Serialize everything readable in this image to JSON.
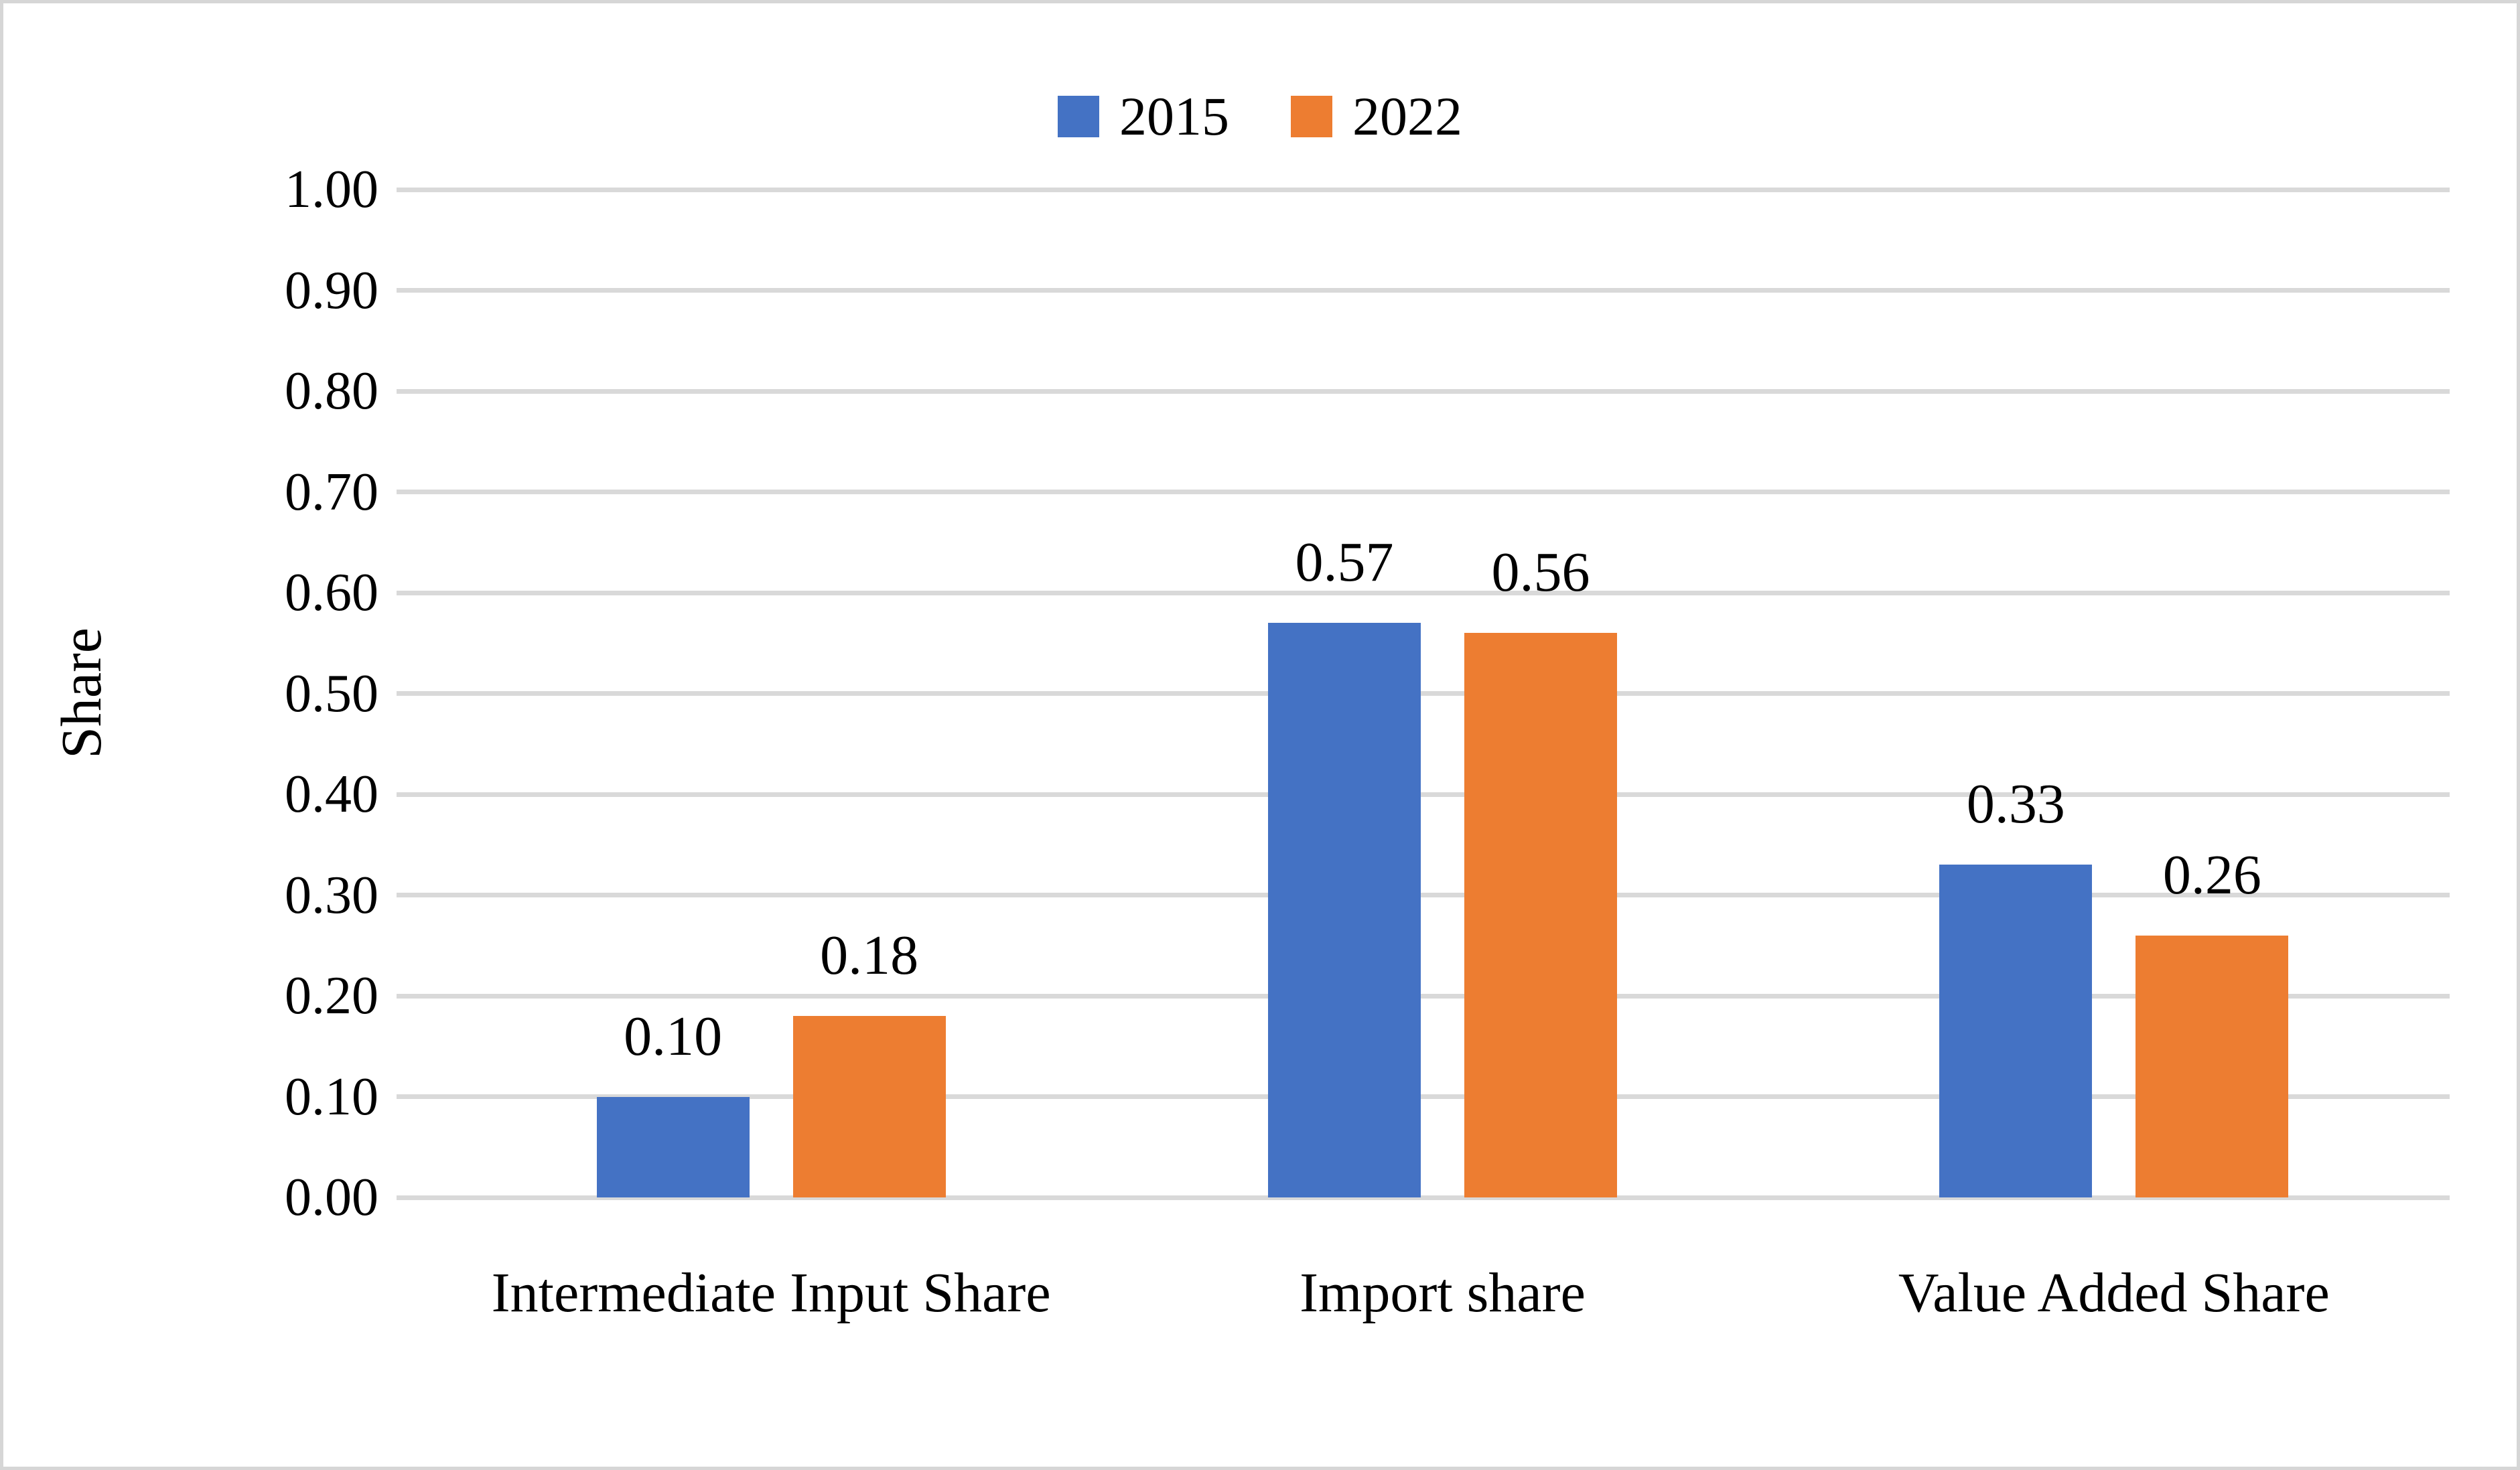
{
  "chart_data": {
    "type": "bar",
    "title": "",
    "ylabel": "Share",
    "xlabel": "",
    "ylim": [
      0.0,
      1.0
    ],
    "grid": "horizontal",
    "legend_position": "top-center",
    "categories": [
      "Intermediate Input Share",
      "Import share",
      "Value Added Share"
    ],
    "yticks": [
      {
        "value": 1.0,
        "label": "1.00"
      },
      {
        "value": 0.9,
        "label": "0.90"
      },
      {
        "value": 0.8,
        "label": "0.80"
      },
      {
        "value": 0.7,
        "label": "0.70"
      },
      {
        "value": 0.6,
        "label": "0.60"
      },
      {
        "value": 0.5,
        "label": "0.50"
      },
      {
        "value": 0.4,
        "label": "0.40"
      },
      {
        "value": 0.3,
        "label": "0.30"
      },
      {
        "value": 0.2,
        "label": "0.20"
      },
      {
        "value": 0.1,
        "label": "0.10"
      },
      {
        "value": 0.0,
        "label": "0.00"
      }
    ],
    "series": [
      {
        "name": "2015",
        "color": "#4472C4",
        "values": [
          0.1,
          0.57,
          0.33
        ],
        "labels": [
          "0.10",
          "0.57",
          "0.33"
        ]
      },
      {
        "name": "2022",
        "color": "#ED7D31",
        "values": [
          0.18,
          0.56,
          0.26
        ],
        "labels": [
          "0.18",
          "0.56",
          "0.26"
        ]
      }
    ]
  },
  "colors": {
    "gridline": "#d9d9d9",
    "tick": "#d9d9d9",
    "figure_border": "#d6d6d6",
    "text": "#000000",
    "background": "#ffffff"
  }
}
